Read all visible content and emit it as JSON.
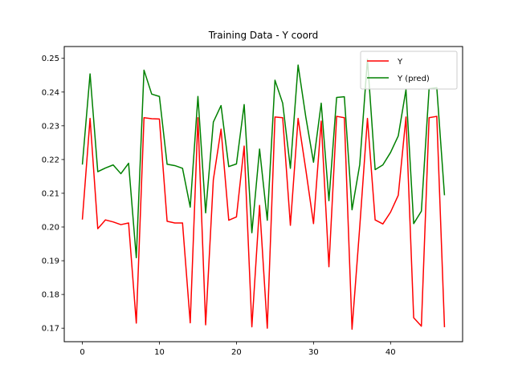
{
  "chart_data": {
    "type": "line",
    "title": "Training Data - Y coord",
    "xlabel": "",
    "ylabel": "",
    "xlim": [
      -2.35,
      49.35
    ],
    "ylim": [
      0.166,
      0.2535
    ],
    "x_ticks": [
      0,
      10,
      20,
      30,
      40
    ],
    "y_ticks": [
      0.17,
      0.18,
      0.19,
      0.2,
      0.21,
      0.22,
      0.23,
      0.24,
      0.25
    ],
    "x_tick_labels": [
      "0",
      "10",
      "20",
      "30",
      "40"
    ],
    "y_tick_labels": [
      "0.17",
      "0.18",
      "0.19",
      "0.20",
      "0.21",
      "0.22",
      "0.23",
      "0.24",
      "0.25"
    ],
    "legend_position": "top-right",
    "grid": false,
    "x": [
      0,
      1,
      2,
      3,
      4,
      5,
      6,
      7,
      8,
      9,
      10,
      11,
      12,
      13,
      14,
      15,
      16,
      17,
      18,
      19,
      20,
      21,
      22,
      23,
      24,
      25,
      26,
      27,
      28,
      29,
      30,
      31,
      32,
      33,
      34,
      35,
      36,
      37,
      38,
      39,
      40,
      41,
      42,
      43,
      44,
      45,
      46,
      47
    ],
    "series": [
      {
        "name": "Y",
        "color": "#ff0000",
        "values": [
          0.2022,
          0.2322,
          0.1995,
          0.2021,
          0.2015,
          0.2007,
          0.2012,
          0.1715,
          0.2324,
          0.2321,
          0.232,
          0.2017,
          0.2012,
          0.2012,
          0.1716,
          0.2324,
          0.171,
          0.214,
          0.229,
          0.202,
          0.203,
          0.224,
          0.1704,
          0.2064,
          0.17,
          0.2326,
          0.2324,
          0.2005,
          0.2322,
          0.217,
          0.201,
          0.2314,
          0.1882,
          0.2328,
          0.2324,
          0.1697,
          0.2,
          0.2322,
          0.2021,
          0.2009,
          0.2044,
          0.2094,
          0.2326,
          0.1731,
          0.1706,
          0.2324,
          0.2328,
          0.1703
        ]
      },
      {
        "name": "Y (pred)",
        "color": "#008000",
        "values": [
          0.2185,
          0.2454,
          0.2164,
          0.2175,
          0.2184,
          0.2158,
          0.2189,
          0.1909,
          0.2465,
          0.2394,
          0.2387,
          0.2186,
          0.2182,
          0.2174,
          0.2059,
          0.2387,
          0.2042,
          0.2311,
          0.236,
          0.2179,
          0.2187,
          0.2363,
          0.1983,
          0.2231,
          0.202,
          0.2435,
          0.2367,
          0.2174,
          0.248,
          0.2326,
          0.2192,
          0.2367,
          0.2078,
          0.2384,
          0.2386,
          0.2051,
          0.2185,
          0.2497,
          0.217,
          0.2184,
          0.2221,
          0.227,
          0.2407,
          0.201,
          0.2047,
          0.241,
          0.2413,
          0.2094
        ]
      }
    ]
  }
}
